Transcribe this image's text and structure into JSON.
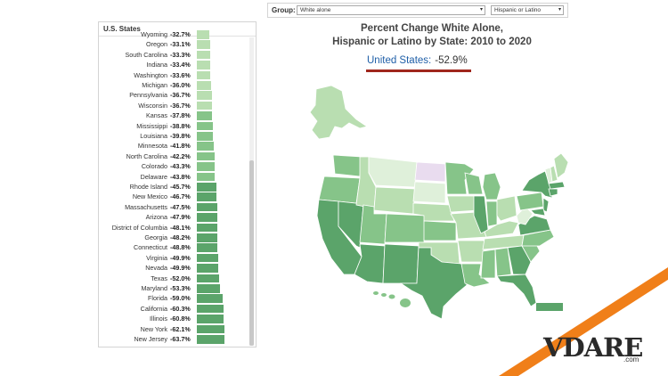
{
  "filter": {
    "group_label": "Group:",
    "select_1": "White alone",
    "select_2": "Hispanic or Latino",
    "arrow": "▾"
  },
  "title": {
    "line1": "Percent Change White Alone,",
    "line2": "Hispanic or Latino by State: 2010 to 2020"
  },
  "us": {
    "label": "United States:",
    "value": "-52.9%"
  },
  "panel": {
    "title": "U.S. States",
    "rows": [
      {
        "name": "Wyoming",
        "value": "-32.7%",
        "pct": 32.7
      },
      {
        "name": "Oregon",
        "value": "-33.1%",
        "pct": 33.1
      },
      {
        "name": "South Carolina",
        "value": "-33.3%",
        "pct": 33.3
      },
      {
        "name": "Indiana",
        "value": "-33.4%",
        "pct": 33.4
      },
      {
        "name": "Washington",
        "value": "-33.6%",
        "pct": 33.6
      },
      {
        "name": "Michigan",
        "value": "-36.0%",
        "pct": 36.0
      },
      {
        "name": "Pennsylvania",
        "value": "-36.7%",
        "pct": 36.7
      },
      {
        "name": "Wisconsin",
        "value": "-36.7%",
        "pct": 36.7
      },
      {
        "name": "Kansas",
        "value": "-37.8%",
        "pct": 37.8
      },
      {
        "name": "Mississippi",
        "value": "-38.8%",
        "pct": 38.8
      },
      {
        "name": "Louisiana",
        "value": "-39.8%",
        "pct": 39.8
      },
      {
        "name": "Minnesota",
        "value": "-41.8%",
        "pct": 41.8
      },
      {
        "name": "North Carolina",
        "value": "-42.2%",
        "pct": 42.2
      },
      {
        "name": "Colorado",
        "value": "-43.3%",
        "pct": 43.3
      },
      {
        "name": "Delaware",
        "value": "-43.8%",
        "pct": 43.8
      },
      {
        "name": "Rhode Island",
        "value": "-45.7%",
        "pct": 45.7
      },
      {
        "name": "New Mexico",
        "value": "-46.7%",
        "pct": 46.7
      },
      {
        "name": "Massachusetts",
        "value": "-47.5%",
        "pct": 47.5
      },
      {
        "name": "Arizona",
        "value": "-47.9%",
        "pct": 47.9
      },
      {
        "name": "District of Columbia",
        "value": "-48.1%",
        "pct": 48.1
      },
      {
        "name": "Georgia",
        "value": "-48.2%",
        "pct": 48.2
      },
      {
        "name": "Connecticut",
        "value": "-48.8%",
        "pct": 48.8
      },
      {
        "name": "Virginia",
        "value": "-49.9%",
        "pct": 49.9
      },
      {
        "name": "Nevada",
        "value": "-49.9%",
        "pct": 49.9
      },
      {
        "name": "Texas",
        "value": "-52.0%",
        "pct": 52.0
      },
      {
        "name": "Maryland",
        "value": "-53.3%",
        "pct": 53.3
      },
      {
        "name": "Florida",
        "value": "-59.0%",
        "pct": 59.0
      },
      {
        "name": "California",
        "value": "-60.3%",
        "pct": 60.3
      },
      {
        "name": "Illinois",
        "value": "-60.8%",
        "pct": 60.8
      },
      {
        "name": "New York",
        "value": "-62.1%",
        "pct": 62.1
      },
      {
        "name": "New Jersey",
        "value": "-63.7%",
        "pct": 63.7
      }
    ]
  },
  "colors": {
    "light": "#b9deb1",
    "mid": "#86c489",
    "dark": "#5ba46a",
    "accent_red": "#a0261c",
    "us_blue": "#1f5fa8",
    "corner_orange": "#f07f19"
  },
  "logo": {
    "text": "VDARE",
    "suffix": ".com"
  }
}
